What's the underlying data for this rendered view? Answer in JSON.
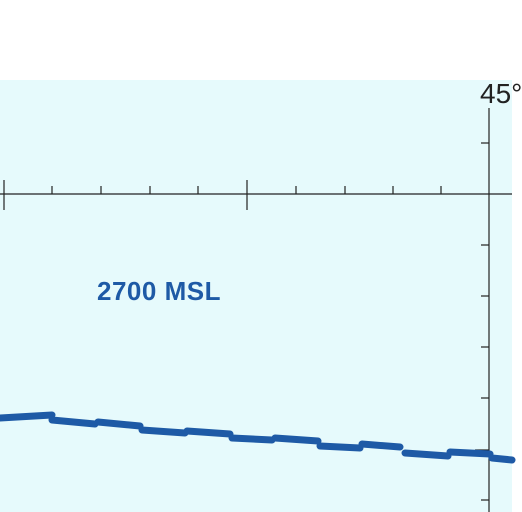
{
  "map": {
    "altitude_label": "2700 MSL",
    "coordinate_label": "45°",
    "colors": {
      "background": "#e6fafc",
      "boundary": "#1e5aa6",
      "graticule": "#222222",
      "label": "#1e5aa6"
    }
  }
}
